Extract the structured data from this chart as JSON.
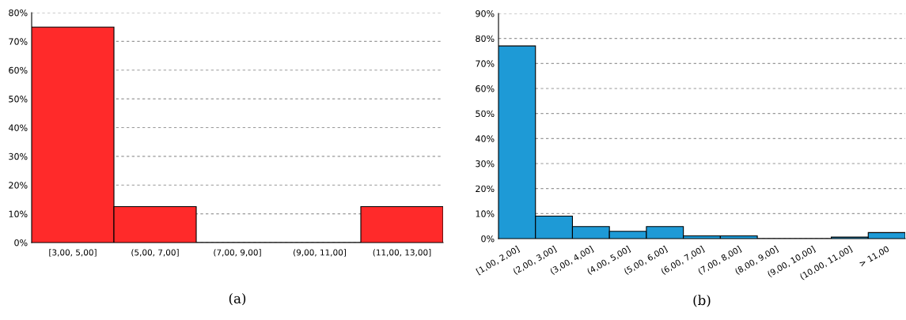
{
  "chart_data": [
    {
      "type": "bar",
      "categories": [
        "[3,00, 5,00]",
        "(5,00, 7,00]",
        "(7,00, 9,00]",
        "(9,00, 11,00]",
        "(11,00, 13,00]"
      ],
      "values": [
        75,
        12.5,
        0,
        0,
        12.5
      ],
      "color": "#ff2a2a",
      "ylim": [
        0,
        80
      ],
      "yticks": [
        {
          "value": 0,
          "label": "0%"
        },
        {
          "value": 10,
          "label": "10%"
        },
        {
          "value": 20,
          "label": "20%"
        },
        {
          "value": 30,
          "label": "30%"
        },
        {
          "value": 40,
          "label": "40%"
        },
        {
          "value": 50,
          "label": "50%"
        },
        {
          "value": 60,
          "label": "60%"
        },
        {
          "value": 70,
          "label": "70%"
        },
        {
          "value": 80,
          "label": "80%"
        }
      ],
      "grid": "y",
      "annotations": [
        "(a)"
      ]
    },
    {
      "type": "bar",
      "categories": [
        "[1,00, 2,00]",
        "(2,00, 3,00]",
        "(3,00, 4,00]",
        "(4,00, 5,00]",
        "(5,00, 6,00]",
        "(6,00, 7,00]",
        "(7,00, 8,00]",
        "(8,00, 9,00]",
        "(9,00, 10,00]",
        "(10,00, 11,00]",
        "> 11,00"
      ],
      "values": [
        77,
        9,
        4.8,
        2.9,
        4.8,
        1.1,
        1.1,
        0,
        0,
        0.6,
        2.4
      ],
      "color": "#1e9ad6",
      "ylim": [
        0,
        90
      ],
      "yticks": [
        {
          "value": 0,
          "label": "0%"
        },
        {
          "value": 10,
          "label": "10%"
        },
        {
          "value": 20,
          "label": "20%"
        },
        {
          "value": 30,
          "label": "30%"
        },
        {
          "value": 40,
          "label": "40%"
        },
        {
          "value": 50,
          "label": "50%"
        },
        {
          "value": 60,
          "label": "60%"
        },
        {
          "value": 70,
          "label": "70%"
        },
        {
          "value": 80,
          "label": "80%"
        },
        {
          "value": 90,
          "label": "90%"
        }
      ],
      "grid": "y",
      "annotations": [
        "(b)"
      ]
    }
  ]
}
